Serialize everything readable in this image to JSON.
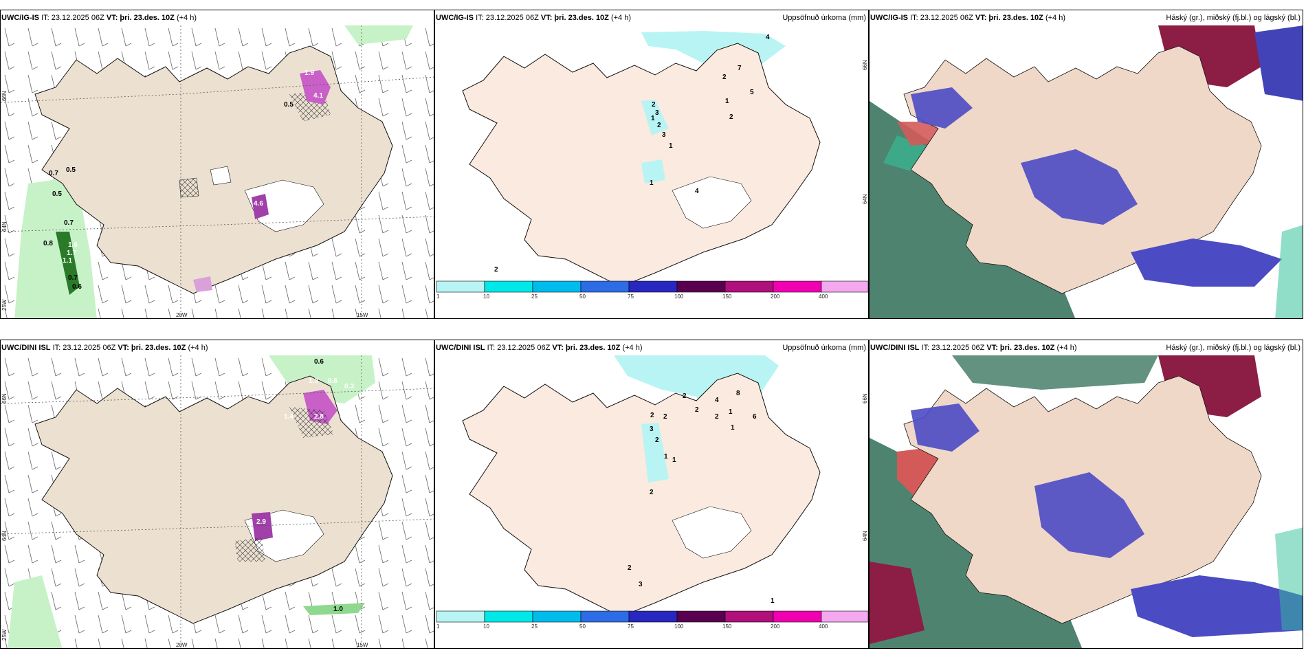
{
  "common": {
    "it_prefix": "IT: 23.12.2025 06Z",
    "vt_text": "VT: þri. 23.des. 10Z",
    "lead": "(+4 h)"
  },
  "panels": {
    "tl_model": "UWC/IG-IS",
    "tm_model": "UWC/IG-IS",
    "tr_model": "UWC/IG-IS",
    "bl_model": "UWC/DINI ISL",
    "bm_model": "UWC/DINI ISL",
    "br_model": "UWC/DINI ISL",
    "precip_title": "Uppsöfnuð úrkoma (mm)",
    "cloud_title": "Háský (gr.), miðský (fj.bl.) og lágský (bl.)"
  },
  "axes": {
    "lat_66": "66N",
    "lat_64": "64N",
    "lon_20": "20W",
    "lon_15": "15W",
    "lon_25": "25W"
  },
  "legend": {
    "ticks": [
      "1",
      "10",
      "25",
      "50",
      "75",
      "100",
      "150",
      "200",
      "400"
    ],
    "colors": [
      "#b8f4f4",
      "#00e8e8",
      "#00bcec",
      "#2e6ce6",
      "#2828c0",
      "#5a0050",
      "#b0107c",
      "#f000b0",
      "#f4a8f0"
    ]
  },
  "labels": {
    "tl": [
      "0.7",
      "0.5",
      "0.5",
      "0.7",
      "0.8",
      "1.1",
      "0.7",
      "0.6",
      "1.6",
      "1.7",
      "1.9",
      "4.1",
      "0.5",
      "4.6"
    ],
    "tm": [
      "4",
      "7",
      "5",
      "2",
      "2",
      "1",
      "2",
      "3",
      "1",
      "1",
      "2",
      "3",
      "4",
      "1",
      "2"
    ],
    "bl": [
      "0.6",
      "1.3",
      "0.6",
      "0.3",
      "2.8",
      "1.4",
      "2.9",
      "1.0"
    ],
    "bm": [
      "2",
      "4",
      "8",
      "2",
      "2",
      "1",
      "6",
      "2",
      "2",
      "3",
      "1",
      "2",
      "1",
      "1",
      "2",
      "2",
      "3",
      "1"
    ]
  }
}
